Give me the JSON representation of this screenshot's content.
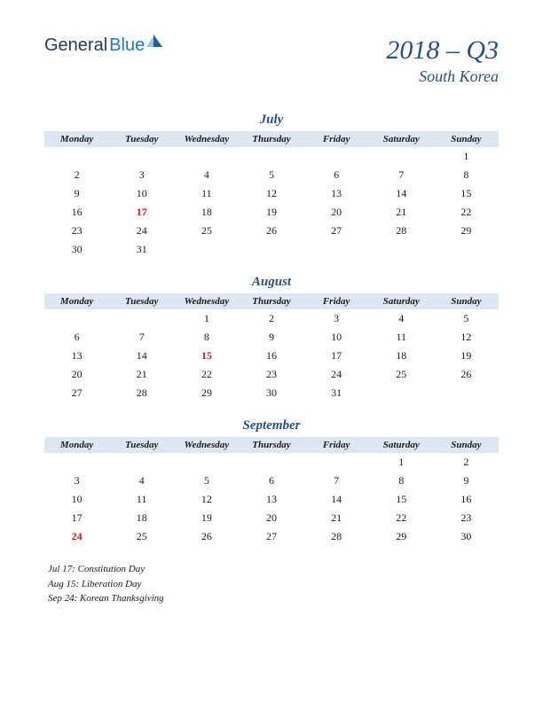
{
  "logo": {
    "part1": "General",
    "part2": "Blue"
  },
  "header": {
    "title": "2018 – Q3",
    "subtitle": "South Korea"
  },
  "weekdays": [
    "Monday",
    "Tuesday",
    "Wednesday",
    "Thursday",
    "Friday",
    "Saturday",
    "Sunday"
  ],
  "months": [
    {
      "name": "July",
      "rows": [
        [
          "",
          "",
          "",
          "",
          "",
          "",
          "1"
        ],
        [
          "2",
          "3",
          "4",
          "5",
          "6",
          "7",
          "8"
        ],
        [
          "9",
          "10",
          "11",
          "12",
          "13",
          "14",
          "15"
        ],
        [
          "16",
          "17",
          "18",
          "19",
          "20",
          "21",
          "22"
        ],
        [
          "23",
          "24",
          "25",
          "26",
          "27",
          "28",
          "29"
        ],
        [
          "30",
          "31",
          "",
          "",
          "",
          "",
          ""
        ]
      ],
      "holidays": [
        "17"
      ]
    },
    {
      "name": "August",
      "rows": [
        [
          "",
          "",
          "1",
          "2",
          "3",
          "4",
          "5"
        ],
        [
          "6",
          "7",
          "8",
          "9",
          "10",
          "11",
          "12"
        ],
        [
          "13",
          "14",
          "15",
          "16",
          "17",
          "18",
          "19"
        ],
        [
          "20",
          "21",
          "22",
          "23",
          "24",
          "25",
          "26"
        ],
        [
          "27",
          "28",
          "29",
          "30",
          "31",
          "",
          ""
        ]
      ],
      "holidays": [
        "15"
      ]
    },
    {
      "name": "September",
      "rows": [
        [
          "",
          "",
          "",
          "",
          "",
          "1",
          "2"
        ],
        [
          "3",
          "4",
          "5",
          "6",
          "7",
          "8",
          "9"
        ],
        [
          "10",
          "11",
          "12",
          "13",
          "14",
          "15",
          "16"
        ],
        [
          "17",
          "18",
          "19",
          "20",
          "21",
          "22",
          "23"
        ],
        [
          "24",
          "25",
          "26",
          "27",
          "28",
          "29",
          "30"
        ]
      ],
      "holidays": [
        "24"
      ]
    }
  ],
  "footnotes": [
    "Jul 17: Constitution Day",
    "Aug 15: Liberation Day",
    "Sep 24: Korean Thanksgiving"
  ],
  "colors": {
    "header_bg": "#dde6f3",
    "accent": "#2a4f84",
    "holiday": "#b52020",
    "text": "#1a1a1a",
    "background": "#ffffff"
  },
  "typography": {
    "title_fontsize": 30,
    "subtitle_fontsize": 18,
    "month_fontsize": 15,
    "weekday_fontsize": 11,
    "day_fontsize": 12,
    "footnote_fontsize": 11,
    "font_family": "Georgia, serif"
  }
}
